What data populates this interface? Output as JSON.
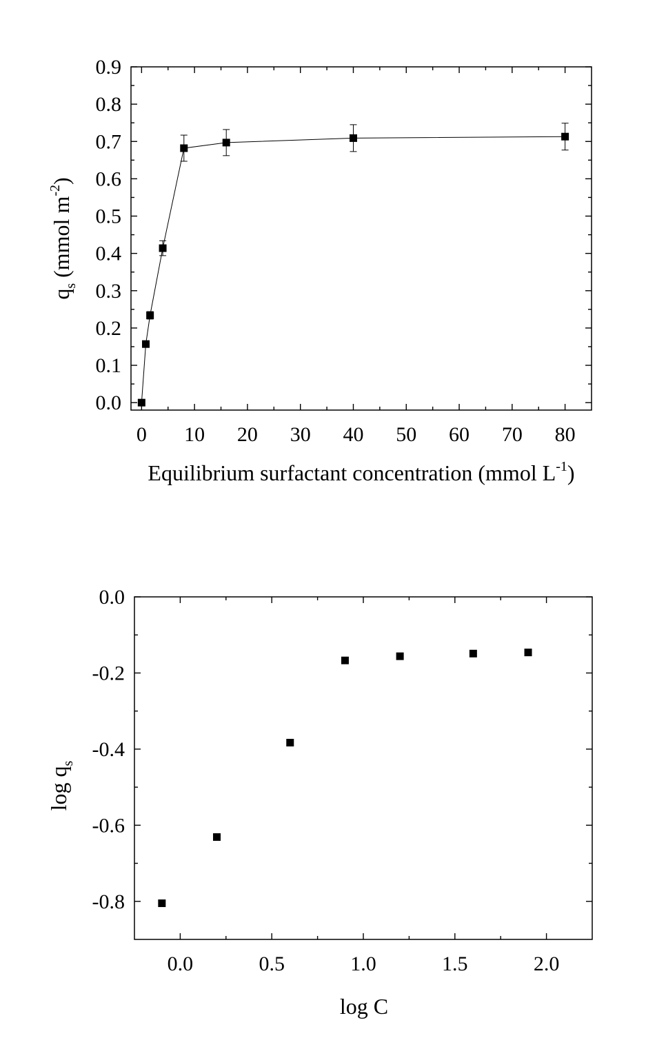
{
  "chart_data": [
    {
      "type": "line",
      "title": "",
      "xlabel": "Equilibrium surfactant concentration (mmol L",
      "xlabel_sup": "-1",
      "xlabel_end": ")",
      "ylabel_main": "q",
      "ylabel_sub": "s",
      "ylabel_mid": " (mmol m",
      "ylabel_sup": "-2",
      "ylabel_end": ")",
      "xlim": [
        -2,
        85
      ],
      "ylim": [
        -0.02,
        0.9
      ],
      "x_ticks": [
        0,
        10,
        20,
        30,
        40,
        50,
        60,
        70,
        80
      ],
      "x_tick_labels": [
        "0",
        "10",
        "20",
        "30",
        "40",
        "50",
        "60",
        "70",
        "80"
      ],
      "y_ticks": [
        0.0,
        0.1,
        0.2,
        0.3,
        0.4,
        0.5,
        0.6,
        0.7,
        0.8,
        0.9
      ],
      "y_tick_labels": [
        "0.0",
        "0.1",
        "0.2",
        "0.3",
        "0.4",
        "0.5",
        "0.6",
        "0.7",
        "0.8",
        "0.9"
      ],
      "grid": false,
      "marker": "square",
      "connected": true,
      "points": [
        {
          "x": 0,
          "y": 0.0,
          "err": 0
        },
        {
          "x": 0.8,
          "y": 0.157,
          "err": 0
        },
        {
          "x": 1.6,
          "y": 0.234,
          "err": 0.01
        },
        {
          "x": 4,
          "y": 0.414,
          "err": 0.02
        },
        {
          "x": 8,
          "y": 0.682,
          "err": 0.035
        },
        {
          "x": 16,
          "y": 0.697,
          "err": 0.035
        },
        {
          "x": 40,
          "y": 0.709,
          "err": 0.036
        },
        {
          "x": 80,
          "y": 0.713,
          "err": 0.036
        }
      ]
    },
    {
      "type": "scatter",
      "title": "",
      "xlabel": "log C",
      "ylabel_main": "log q",
      "ylabel_sub": "s",
      "xlim": [
        -0.25,
        2.25
      ],
      "ylim": [
        -0.9,
        0.0
      ],
      "x_ticks": [
        0.0,
        0.5,
        1.0,
        1.5,
        2.0
      ],
      "x_tick_labels": [
        "0.0",
        "0.5",
        "1.0",
        "1.5",
        "2.0"
      ],
      "y_ticks": [
        0.0,
        -0.2,
        -0.4,
        -0.6,
        -0.8
      ],
      "y_tick_labels": [
        "0.0",
        "-0.2",
        "-0.4",
        "-0.6",
        "-0.8"
      ],
      "grid": false,
      "marker": "square",
      "connected": false,
      "points": [
        {
          "x": -0.1,
          "y": -0.805
        },
        {
          "x": 0.2,
          "y": -0.631
        },
        {
          "x": 0.6,
          "y": -0.383
        },
        {
          "x": 0.9,
          "y": -0.167
        },
        {
          "x": 1.2,
          "y": -0.156
        },
        {
          "x": 1.6,
          "y": -0.149
        },
        {
          "x": 1.9,
          "y": -0.146
        }
      ]
    }
  ]
}
